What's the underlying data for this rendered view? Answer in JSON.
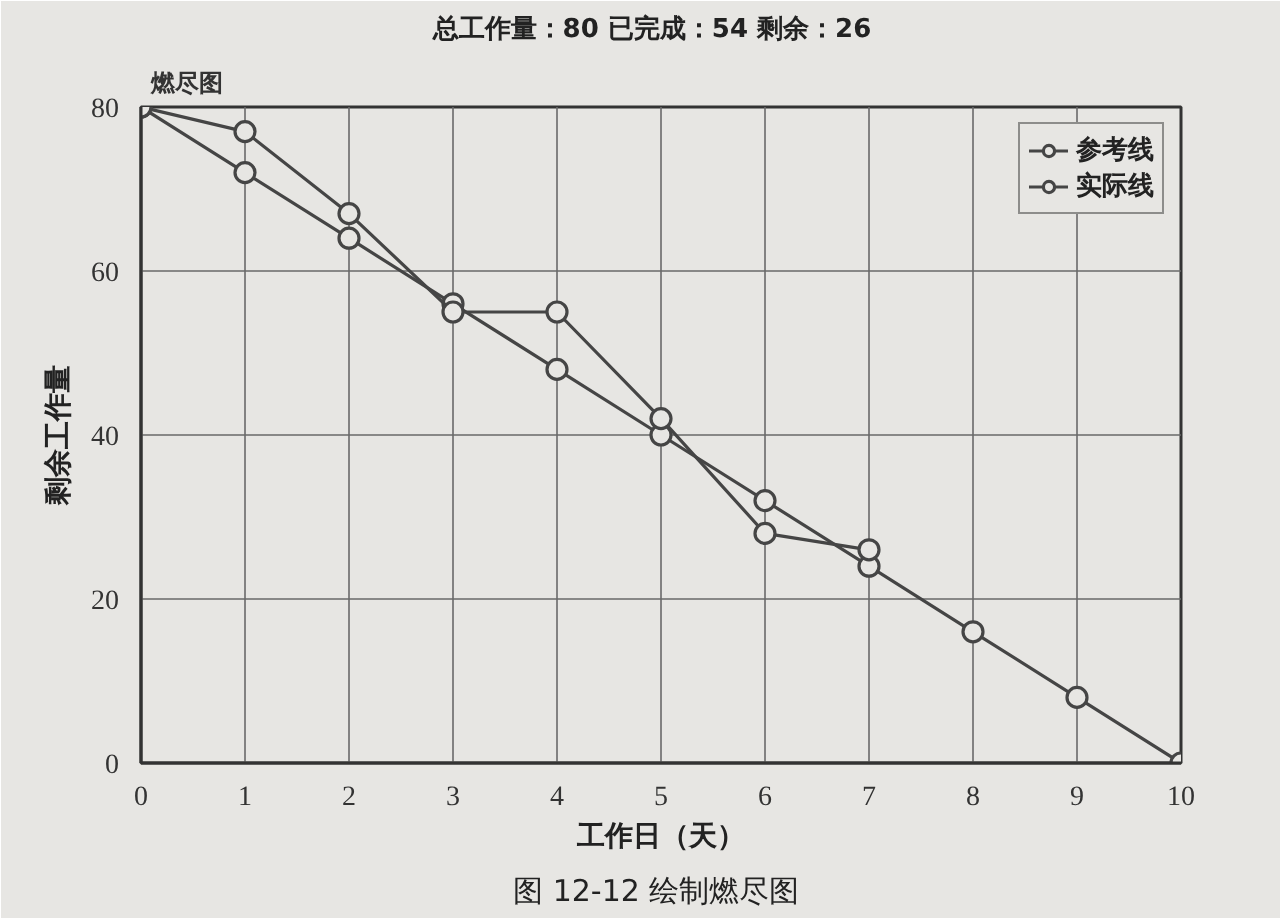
{
  "chart_data": {
    "type": "line",
    "title": "总工作量：80  已完成：54  剩余：26",
    "xlabel": "工作日（天）",
    "ylabel": "剩余工作量",
    "annotations": [
      "燃尽图",
      "图 12-12  绘制燃尽图"
    ],
    "series": [
      {
        "name": "参考线",
        "color": "#454545",
        "x": [
          0,
          1,
          2,
          3,
          4,
          5,
          6,
          7,
          8,
          9,
          10
        ],
        "values": [
          80,
          72,
          64,
          56,
          48,
          40,
          32,
          24,
          16,
          8,
          0
        ]
      },
      {
        "name": "实际线",
        "color": "#454545",
        "x": [
          0,
          1,
          2,
          3,
          4,
          5,
          6,
          7
        ],
        "values": [
          80,
          77,
          67,
          55,
          55,
          42,
          28,
          26
        ]
      }
    ],
    "xlim": [
      0,
      10
    ],
    "ylim": [
      0,
      80
    ],
    "xticks": [
      0,
      1,
      2,
      3,
      4,
      5,
      6,
      7,
      8,
      9,
      10
    ],
    "yticks": [
      0,
      20,
      40,
      60,
      80
    ],
    "grid": true,
    "legend": "top right",
    "marker": "circle",
    "line_style": "solid"
  }
}
